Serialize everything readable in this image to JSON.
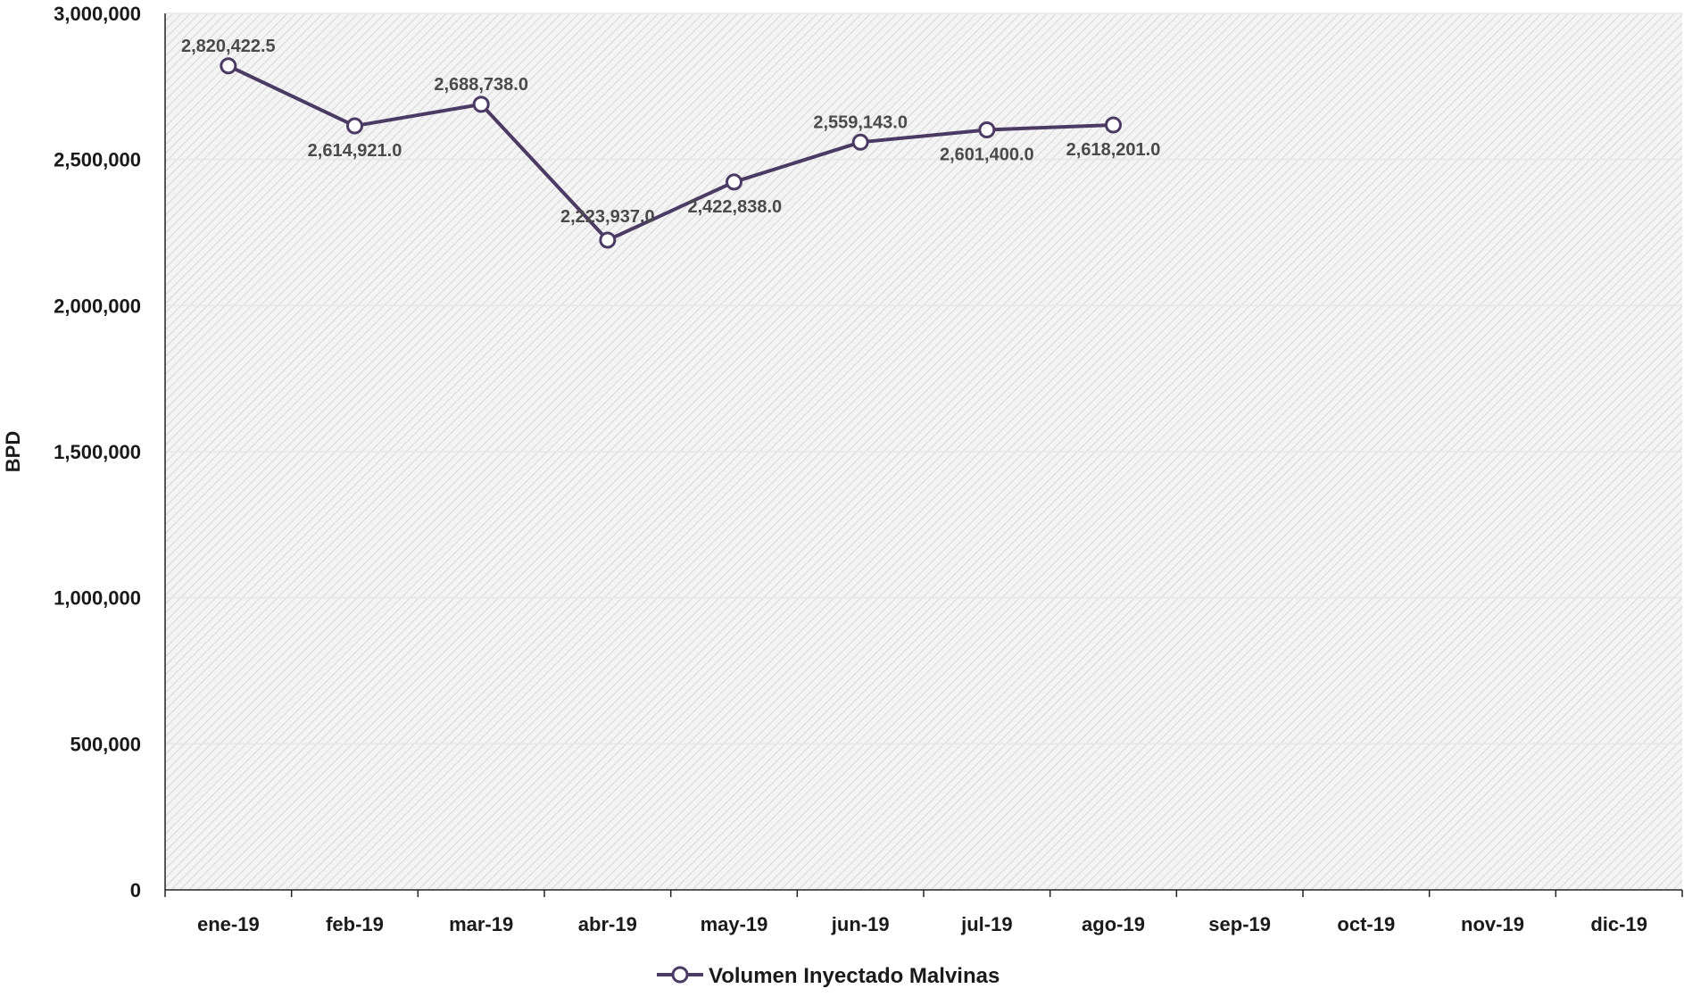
{
  "chart_data": {
    "type": "line",
    "title": "",
    "xlabel": "",
    "ylabel": "BPD",
    "ylim": [
      0,
      3000000
    ],
    "yticks": [
      0,
      500000,
      1000000,
      1500000,
      2000000,
      2500000,
      3000000
    ],
    "ytick_labels": [
      "0",
      "500,000",
      "1,000,000",
      "1,500,000",
      "2,000,000",
      "2,500,000",
      "3,000,000"
    ],
    "categories": [
      "ene-19",
      "feb-19",
      "mar-19",
      "abr-19",
      "may-19",
      "jun-19",
      "jul-19",
      "ago-19",
      "sep-19",
      "oct-19",
      "nov-19",
      "dic-19"
    ],
    "grid": true,
    "legend_position": "bottom",
    "series": [
      {
        "name": "Volumen Inyectado Malvinas",
        "color": "#4b3a63",
        "marker": "open-circle",
        "values": [
          2820422.5,
          2614921.0,
          2688738.0,
          2223937.0,
          2422838.0,
          2559143.0,
          2601400.0,
          2618201.0,
          null,
          null,
          null,
          null
        ],
        "data_labels": [
          "2,820,422.5",
          "2,614,921.0",
          "2,688,738.0",
          "2,223,937.0",
          "2,422,838.0",
          "2,559,143.0",
          "2,601,400.0",
          "2,618,201.0",
          null,
          null,
          null,
          null
        ],
        "label_positions": [
          "above",
          "below",
          "above",
          "above-left",
          "right",
          "above",
          "below",
          "below",
          null,
          null,
          null,
          null
        ]
      }
    ]
  }
}
